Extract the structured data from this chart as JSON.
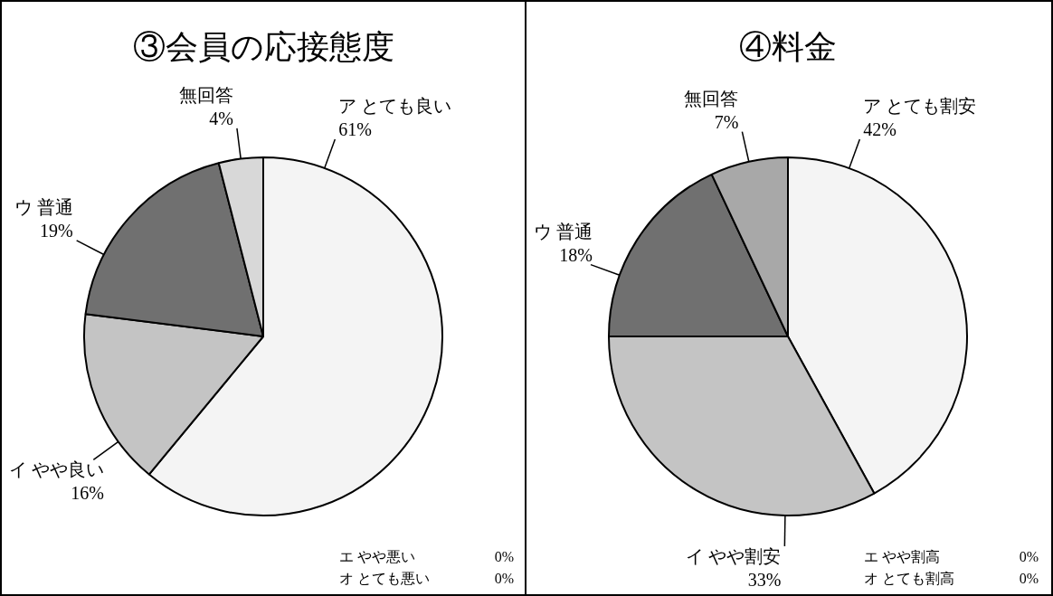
{
  "chart_data": [
    {
      "type": "pie",
      "title": "③会員の応接態度",
      "categories": [
        "ア とても良い",
        "イ やや良い",
        "ウ 普通",
        "エ やや悪い",
        "オ とても悪い",
        "無回答"
      ],
      "values": [
        61,
        16,
        19,
        0,
        0,
        4
      ],
      "value_labels": [
        "61%",
        "16%",
        "19%",
        "0%",
        "0%",
        "4%"
      ],
      "colors": [
        "#f4f4f4",
        "#c4c4c4",
        "#707070",
        "#ffffff",
        "#ffffff",
        "#d8d8d8"
      ]
    },
    {
      "type": "pie",
      "title": "④料金",
      "categories": [
        "ア とても割安",
        "イ やや割安",
        "ウ 普通",
        "エ やや割高",
        "オ とても割高",
        "無回答"
      ],
      "values": [
        42,
        33,
        18,
        0,
        0,
        7
      ],
      "value_labels": [
        "42%",
        "33%",
        "18%",
        "0%",
        "0%",
        "7%"
      ],
      "colors": [
        "#f4f4f4",
        "#c4c4c4",
        "#707070",
        "#ffffff",
        "#ffffff",
        "#a8a8a8"
      ]
    }
  ]
}
